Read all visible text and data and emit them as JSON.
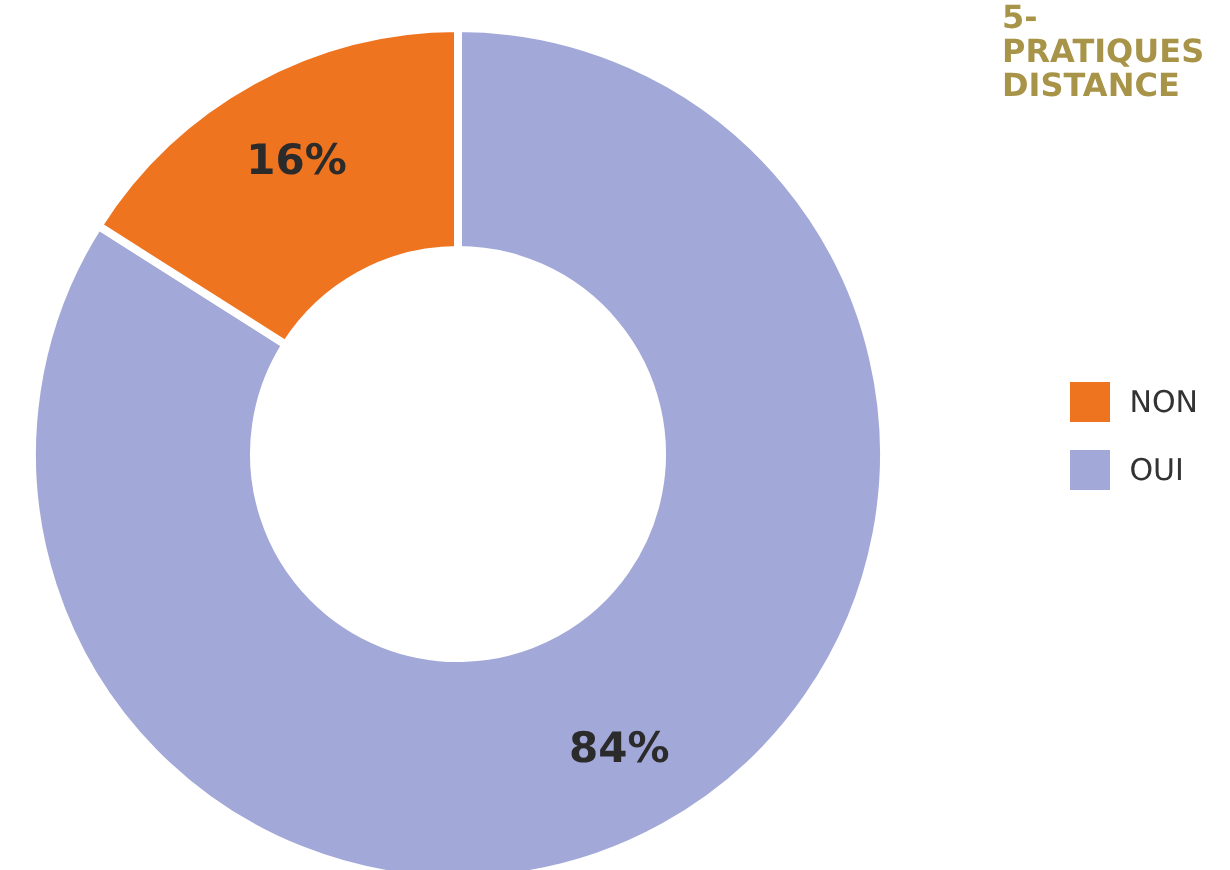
{
  "chart_data": {
    "type": "donut",
    "title": "5- PRATIQUES DISTANCE",
    "categories": [
      "OUI",
      "NON"
    ],
    "values": [
      84,
      16
    ],
    "colors": [
      "#a2a8d8",
      "#ef7420"
    ],
    "value_labels": [
      "84%",
      "16%"
    ],
    "legend": "right"
  }
}
